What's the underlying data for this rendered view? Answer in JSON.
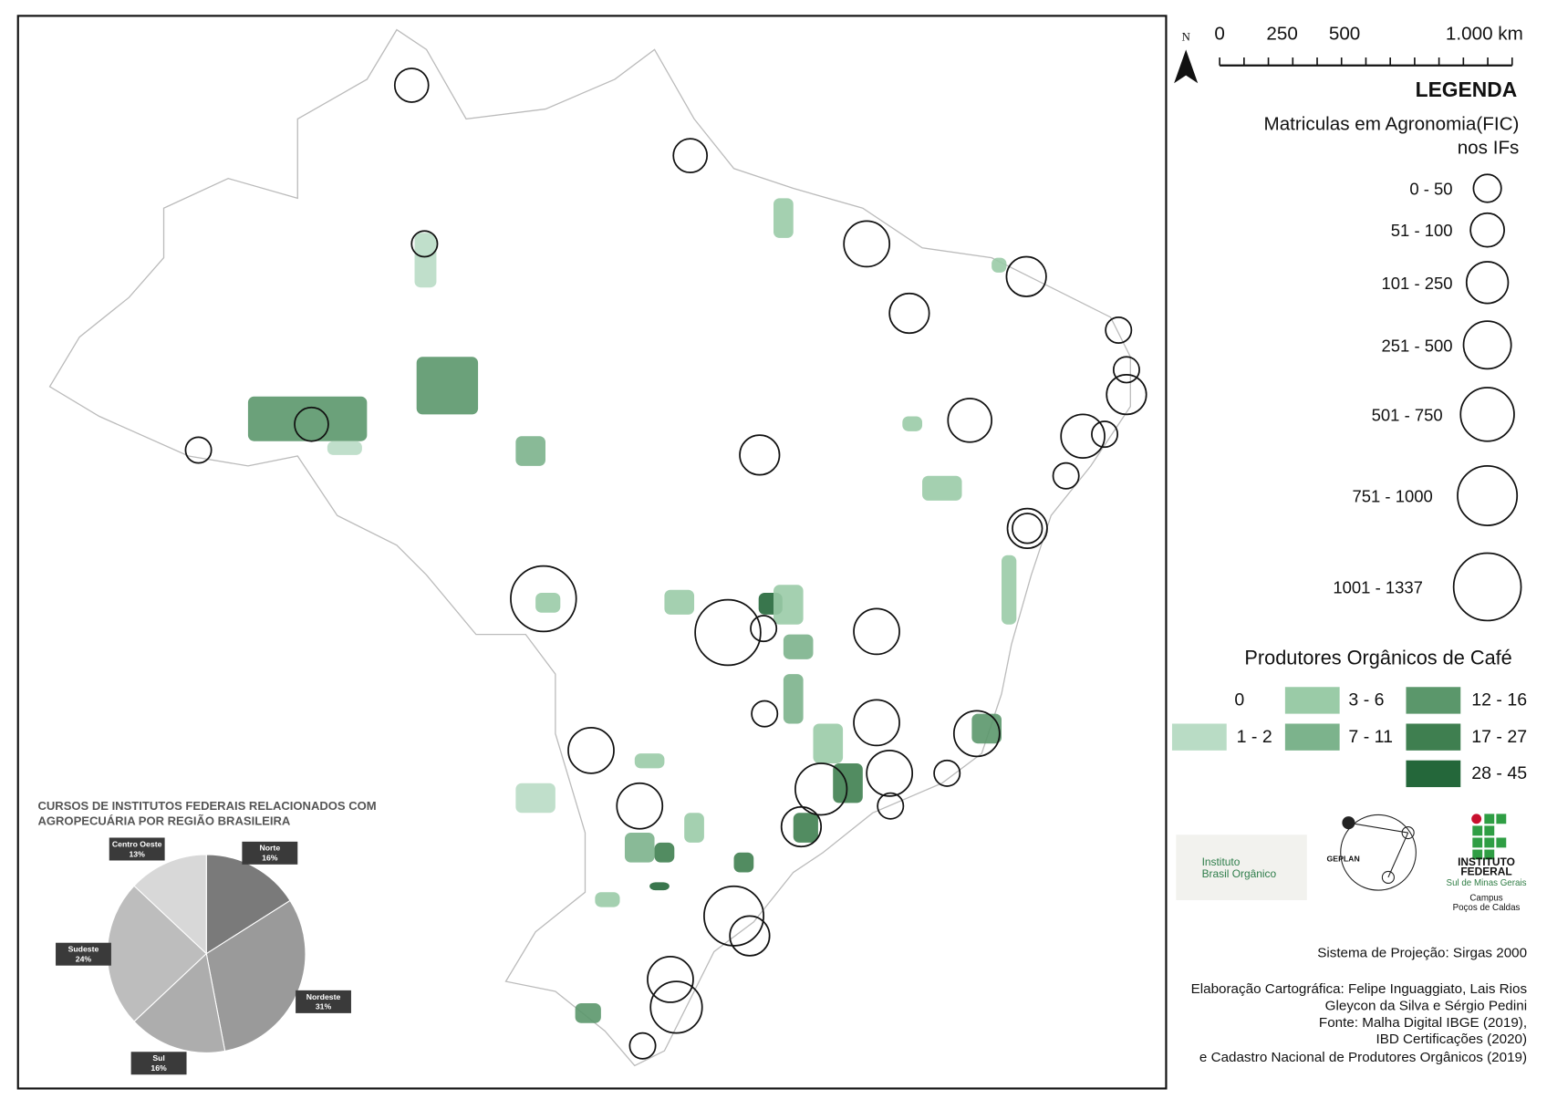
{
  "north": "N",
  "scale_bar": {
    "labels": [
      "0",
      "250",
      "500",
      "1.000 km"
    ]
  },
  "legend": {
    "title": "LEGENDA",
    "circle_title": [
      "Matriculas em Agronomia(FIC)",
      "nos IFs"
    ],
    "circle_classes": [
      "0 - 50",
      "51 - 100",
      "101 - 250",
      "251 - 500",
      "501 - 750",
      "751 - 1000",
      "1001 - 1337"
    ],
    "color_title": "Produtores Orgânicos de Café",
    "color_classes": [
      {
        "label": "0",
        "color": "#ffffff"
      },
      {
        "label": "1 - 2",
        "color": "#b9dcc5"
      },
      {
        "label": "3 - 6",
        "color": "#9acba7"
      },
      {
        "label": "7 - 11",
        "color": "#7cb38c"
      },
      {
        "label": "12 - 16",
        "color": "#5b976b"
      },
      {
        "label": "17 - 27",
        "color": "#3f7f50"
      },
      {
        "label": "28 - 45",
        "color": "#24673a"
      }
    ]
  },
  "logos": {
    "ibo": [
      "Instituto",
      "Brasil Orgânico"
    ],
    "geplan": "GEPLAN",
    "if": [
      "INSTITUTO",
      "FEDERAL"
    ],
    "if_sub": [
      "Sul de Minas Gerais",
      "Campus",
      "Poços de Caldas"
    ]
  },
  "credits": [
    "Sistema de Projeção: Sirgas 2000",
    "Elaboração Cartográfica: Felipe Inguaggiato, Lais Rios",
    "Gleycon da Silva e Sérgio Pedini",
    "Fonte: Malha Digital IBGE (2019),",
    "IBD Certificações (2020)",
    "e Cadastro Nacional de Produtores Orgânicos (2019)"
  ],
  "chart_data": {
    "type": "pie",
    "title": [
      "CURSOS DE INSTITUTOS FEDERAIS RELACIONADOS  COM",
      "AGROPECUÁRIA POR REGIÃO BRASILEIRA"
    ],
    "categories": [
      "Norte",
      "Nordeste",
      "Sul",
      "Sudeste",
      "Centro Oeste"
    ],
    "values": [
      16,
      31,
      16,
      24,
      13
    ],
    "value_labels": [
      "16%",
      "31%",
      "16%",
      "24%",
      "13%"
    ],
    "colors": [
      "#7a7a7a",
      "#9a9a9a",
      "#adadad",
      "#bdbdbd",
      "#d8d8d8"
    ]
  }
}
